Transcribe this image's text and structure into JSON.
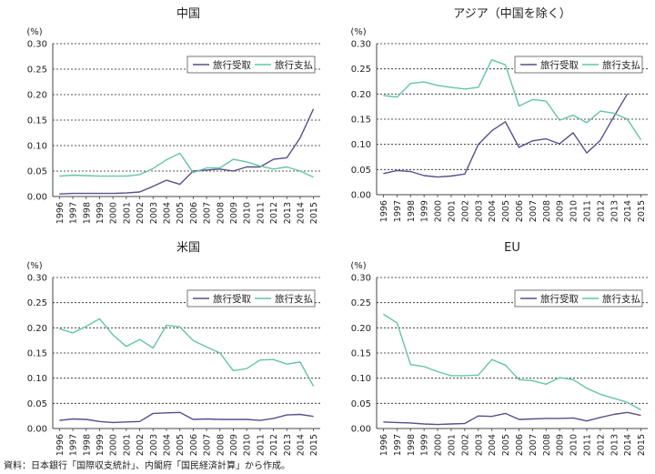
{
  "colors": {
    "receipts": "#5a4e8c",
    "payments": "#66c4a6",
    "axis": "#444444",
    "grid": "#222222"
  },
  "legend": {
    "receipts": "旅行受取",
    "payments": "旅行支払"
  },
  "source_note": "資料：日本銀行「国際収支統計」、内閣府「国民経済計算」から作成。",
  "chart_data": [
    {
      "type": "line",
      "title": "中国",
      "ylabel": "(%)",
      "ylim": [
        0,
        0.3
      ],
      "yticks": [
        "0.00",
        "0.05",
        "0.10",
        "0.15",
        "0.20",
        "0.25",
        "0.30"
      ],
      "grid": "horizontal dashed",
      "legend_position": "top-right",
      "x": [
        "1996",
        "1997",
        "1998",
        "1999",
        "2000",
        "2001",
        "2002",
        "2003",
        "2004",
        "2005",
        "2006",
        "2007",
        "2008",
        "2009",
        "2010",
        "2011",
        "2012",
        "2013",
        "2014",
        "2015"
      ],
      "series": [
        {
          "name": "旅行受取",
          "values": [
            0.005,
            0.006,
            0.006,
            0.006,
            0.006,
            0.007,
            0.009,
            0.02,
            0.032,
            0.024,
            0.05,
            0.052,
            0.054,
            0.05,
            0.058,
            0.058,
            0.073,
            0.076,
            0.115,
            0.172
          ]
        },
        {
          "name": "旅行支払",
          "values": [
            0.04,
            0.042,
            0.041,
            0.04,
            0.04,
            0.04,
            0.043,
            0.055,
            0.072,
            0.085,
            0.047,
            0.056,
            0.056,
            0.073,
            0.068,
            0.06,
            0.054,
            0.058,
            0.05,
            0.038
          ]
        }
      ]
    },
    {
      "type": "line",
      "title": "アジア（中国を除く）",
      "ylabel": "(%)",
      "ylim": [
        0,
        0.3
      ],
      "yticks": [
        "0.00",
        "0.05",
        "0.10",
        "0.15",
        "0.20",
        "0.25",
        "0.30"
      ],
      "grid": "horizontal dashed",
      "legend_position": "top-right",
      "x": [
        "1996",
        "1997",
        "1998",
        "1999",
        "2000",
        "2001",
        "2002",
        "2003",
        "2004",
        "2005",
        "2006",
        "2007",
        "2008",
        "2009",
        "2010",
        "2011",
        "2012",
        "2013",
        "2014",
        "2015"
      ],
      "series": [
        {
          "name": "旅行受取",
          "values": [
            0.042,
            0.048,
            0.046,
            0.038,
            0.035,
            0.037,
            0.041,
            0.1,
            0.127,
            0.145,
            0.094,
            0.107,
            0.111,
            0.101,
            0.123,
            0.083,
            0.108,
            0.155,
            0.2,
            null
          ]
        },
        {
          "name": "旅行支払",
          "values": [
            0.197,
            0.194,
            0.221,
            0.224,
            0.217,
            0.213,
            0.21,
            0.213,
            0.268,
            0.258,
            0.176,
            0.189,
            0.186,
            0.148,
            0.158,
            0.143,
            0.166,
            0.162,
            0.15,
            0.109
          ]
        }
      ]
    },
    {
      "type": "line",
      "title": "米国",
      "ylabel": "(%)",
      "ylim": [
        0,
        0.3
      ],
      "yticks": [
        "0.00",
        "0.05",
        "0.10",
        "0.15",
        "0.20",
        "0.25",
        "0.30"
      ],
      "grid": "horizontal dashed",
      "legend_position": "top-right",
      "x": [
        "1996",
        "1997",
        "1998",
        "1999",
        "2000",
        "2001",
        "2002",
        "2003",
        "2004",
        "2005",
        "2006",
        "2007",
        "2008",
        "2009",
        "2010",
        "2011",
        "2012",
        "2013",
        "2014",
        "2015"
      ],
      "series": [
        {
          "name": "旅行受取",
          "values": [
            0.016,
            0.019,
            0.018,
            0.014,
            0.012,
            0.013,
            0.014,
            0.03,
            0.031,
            0.032,
            0.018,
            0.019,
            0.018,
            0.018,
            0.018,
            0.016,
            0.02,
            0.027,
            0.028,
            0.024
          ]
        },
        {
          "name": "旅行支払",
          "values": [
            0.198,
            0.19,
            0.203,
            0.218,
            0.186,
            0.163,
            0.177,
            0.16,
            0.205,
            0.202,
            0.175,
            0.162,
            0.15,
            0.115,
            0.119,
            0.136,
            0.137,
            0.128,
            0.132,
            0.084
          ]
        }
      ]
    },
    {
      "type": "line",
      "title": "EU",
      "ylabel": "(%)",
      "ylim": [
        0,
        0.3
      ],
      "yticks": [
        "0.00",
        "0.05",
        "0.10",
        "0.15",
        "0.20",
        "0.25",
        "0.30"
      ],
      "grid": "horizontal dashed",
      "legend_position": "top-right",
      "x": [
        "1996",
        "1997",
        "1998",
        "1999",
        "2000",
        "2001",
        "2002",
        "2003",
        "2004",
        "2005",
        "2006",
        "2007",
        "2008",
        "2009",
        "2010",
        "2011",
        "2012",
        "2013",
        "2014",
        "2015"
      ],
      "series": [
        {
          "name": "旅行受取",
          "values": [
            0.013,
            0.012,
            0.011,
            0.009,
            0.008,
            0.009,
            0.01,
            0.025,
            0.024,
            0.03,
            0.018,
            0.019,
            0.02,
            0.02,
            0.021,
            0.015,
            0.022,
            0.028,
            0.032,
            0.026
          ]
        },
        {
          "name": "旅行支払",
          "values": [
            0.227,
            0.21,
            0.127,
            0.123,
            0.113,
            0.105,
            0.105,
            0.106,
            0.137,
            0.126,
            0.097,
            0.095,
            0.088,
            0.101,
            0.097,
            0.08,
            0.068,
            0.06,
            0.052,
            0.037
          ]
        }
      ]
    }
  ]
}
